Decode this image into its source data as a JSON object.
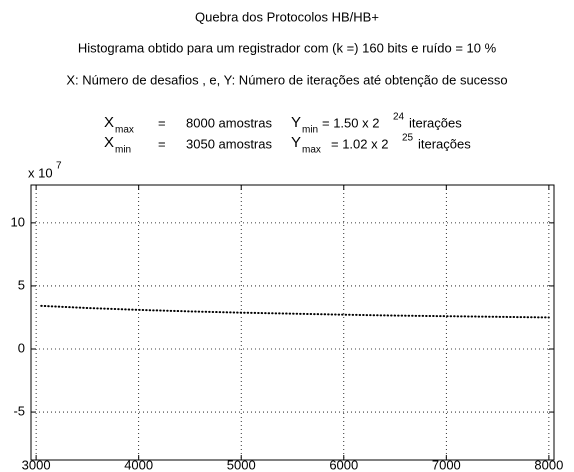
{
  "chart_data": {
    "type": "line",
    "title": "Quebra dos Protocolos HB/HB+",
    "subtitle": "Histograma obtido para um registrador com (k =) 160 bits e ruído = 10 %",
    "description": "X: Número de desafios , e, Y: Número de iterações até obtenção de sucesso",
    "stats": {
      "x_max": [
        "X",
        "max",
        "=",
        "8000 amostras"
      ],
      "y_min": [
        "Y",
        "min",
        "= 1.50 x 2",
        "24",
        "iterações"
      ],
      "x_min": [
        "X",
        "min",
        "=",
        "3050 amostras"
      ],
      "y_max": [
        "Y",
        "max",
        "= 1.02 x 2",
        "25",
        "iterações"
      ]
    },
    "y_multiplier": [
      "x 10",
      "7"
    ],
    "x": [
      3050,
      3500,
      4000,
      4500,
      5000,
      5500,
      6000,
      6500,
      7000,
      7500,
      8000
    ],
    "values": [
      3.42,
      3.25,
      3.1,
      2.98,
      2.88,
      2.8,
      2.72,
      2.65,
      2.6,
      2.55,
      2.5
    ],
    "color": "#000000",
    "xlim": [
      2950,
      8050
    ],
    "ylim": [
      -8.8,
      13
    ],
    "xticks": [
      3000,
      4000,
      5000,
      6000,
      7000,
      8000
    ],
    "yticks": [
      -5,
      0,
      5,
      10
    ],
    "grid": true
  }
}
